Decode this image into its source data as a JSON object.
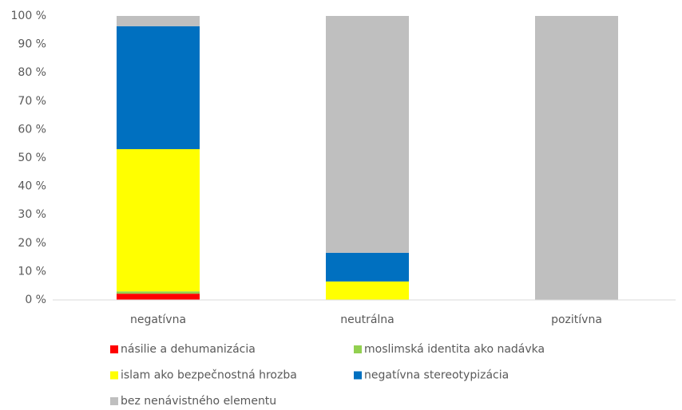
{
  "chart_data": {
    "type": "stacked_bar",
    "categories": [
      "negatívna",
      "neutrálna",
      "pozitívna"
    ],
    "series": [
      {
        "name": "násilie a dehumanizácia",
        "color": "#ff0000",
        "values": [
          2.2,
          0,
          0
        ]
      },
      {
        "name": "moslimská identita ako nadávka",
        "color": "#92d050",
        "values": [
          0.8,
          0,
          0
        ]
      },
      {
        "name": "islam ako bezpečnostná hrozba",
        "color": "#ffff00",
        "values": [
          50.1,
          6.5,
          0
        ]
      },
      {
        "name": "negatívna stereotypizácia",
        "color": "#0070c0",
        "values": [
          43.3,
          10.1,
          0
        ]
      },
      {
        "name": "bez nenávistného elementu",
        "color": "#bfbfbf",
        "values": [
          3.6,
          83.4,
          100
        ]
      }
    ],
    "ylim": [
      0,
      100
    ],
    "yticks": [
      {
        "value": 0,
        "label": "0 %"
      },
      {
        "value": 10,
        "label": "10 %"
      },
      {
        "value": 20,
        "label": "20 %"
      },
      {
        "value": 30,
        "label": "30 %"
      },
      {
        "value": 40,
        "label": "40 %"
      },
      {
        "value": 50,
        "label": "50 %"
      },
      {
        "value": 60,
        "label": "60 %"
      },
      {
        "value": 70,
        "label": "70 %"
      },
      {
        "value": 80,
        "label": "80 %"
      },
      {
        "value": 90,
        "label": "90 %"
      },
      {
        "value": 100,
        "label": "100 %"
      }
    ],
    "grid": false,
    "legend": "bottom"
  }
}
